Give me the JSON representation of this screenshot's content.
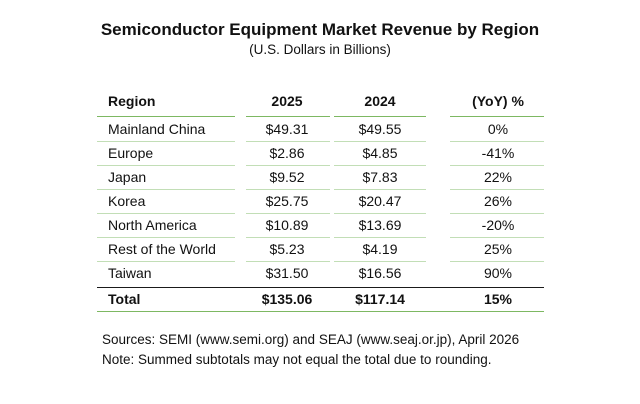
{
  "header": {
    "title": "Semiconductor Equipment Market Revenue by Region",
    "subtitle": "(U.S. Dollars in Billions)"
  },
  "table": {
    "columns": [
      "Region",
      "2025",
      "2024",
      "(YoY) %"
    ],
    "rows": [
      [
        "Mainland China",
        "$49.31",
        "$49.55",
        "0%"
      ],
      [
        "Europe",
        "$2.86",
        "$4.85",
        "-41%"
      ],
      [
        "Japan",
        "$9.52",
        "$7.83",
        "22%"
      ],
      [
        "Korea",
        "$25.75",
        "$20.47",
        "26%"
      ],
      [
        "North America",
        "$10.89",
        "$13.69",
        "-20%"
      ],
      [
        "Rest of the World",
        "$5.23",
        "$4.19",
        "25%"
      ],
      [
        "Taiwan",
        "$31.50",
        "$16.56",
        "90%"
      ]
    ],
    "total": [
      "Total",
      "$135.06",
      "$117.14",
      "15%"
    ]
  },
  "footer": {
    "sources": "Sources: SEMI (www.semi.org) and SEAJ (www.seaj.or.jp), April 2026",
    "note": "Note: Summed subtotals may not equal the total due to rounding."
  },
  "colors": {
    "rule_green": "#8fc27a",
    "text": "#111111"
  }
}
